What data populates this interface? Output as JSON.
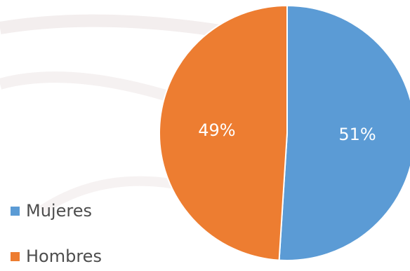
{
  "chart_data": {
    "type": "pie",
    "slices": [
      {
        "name": "Mujeres",
        "value": 51,
        "label": "51%",
        "color": "#5b9bd5"
      },
      {
        "name": "Hombres",
        "value": 49,
        "label": "49%",
        "color": "#ed7d31"
      }
    ],
    "legend_position": "left-bottom",
    "start_angle_deg": 0,
    "label_color": "#ffffff"
  }
}
